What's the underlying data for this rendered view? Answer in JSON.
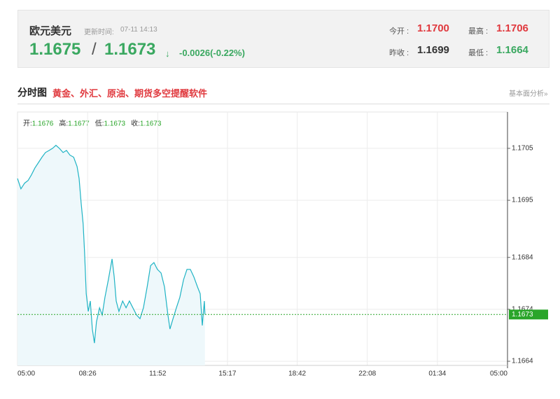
{
  "header": {
    "title": "欧元美元",
    "update_label": "更新时间:",
    "update_time": "07-11 14:13",
    "bid": "1.1675",
    "separator": "/",
    "ask": "1.1673",
    "arrow": "↓",
    "change": "-0.0026(-0.22%)",
    "stats": [
      {
        "label": "今开 :",
        "value": "1.1700"
      },
      {
        "label": "最高 :",
        "value": "1.1706"
      },
      {
        "label": "昨收 :",
        "value": "1.1699"
      },
      {
        "label": "最低 :",
        "value": "1.1664"
      }
    ]
  },
  "section": {
    "title": "分时图",
    "promo": "黄金、外汇、原油、期货多空提醒软件",
    "link": "基本面分析»"
  },
  "chart_data": {
    "type": "line",
    "ohlc": [
      {
        "label": "开:",
        "value": "1.1676"
      },
      {
        "label": "高:",
        "value": "1.1677"
      },
      {
        "label": "低:",
        "value": "1.1673"
      },
      {
        "label": "收:",
        "value": "1.1673"
      }
    ],
    "x": [
      0,
      10,
      21,
      31,
      41,
      51,
      62,
      72,
      82,
      93,
      103,
      113,
      123,
      134,
      144,
      154,
      165,
      175,
      181,
      187,
      193,
      197,
      202,
      208,
      214,
      220,
      226,
      232,
      241,
      249,
      257,
      267,
      278,
      284,
      290,
      298,
      309,
      319,
      329,
      339,
      350,
      360,
      370,
      381,
      391,
      401,
      411,
      422,
      432,
      442,
      448,
      457,
      467,
      477,
      488,
      498,
      508,
      518,
      529,
      537,
      543,
      549,
      551
    ],
    "series": [
      {
        "color": "#1fb3c4",
        "values": [
          1.16992,
          1.16972,
          1.16983,
          1.16988,
          1.16999,
          1.17012,
          1.17023,
          1.17033,
          1.17042,
          1.17046,
          1.1705,
          1.17056,
          1.1705,
          1.17042,
          1.17046,
          1.17037,
          1.17033,
          1.17015,
          1.16992,
          1.16945,
          1.16904,
          1.1685,
          1.1677,
          1.16736,
          1.16756,
          1.16702,
          1.16675,
          1.16716,
          1.16743,
          1.16729,
          1.16763,
          1.16797,
          1.16837,
          1.16803,
          1.16756,
          1.16736,
          1.16756,
          1.16743,
          1.16756,
          1.16743,
          1.16729,
          1.16722,
          1.16743,
          1.16783,
          1.16824,
          1.1683,
          1.16817,
          1.1681,
          1.16783,
          1.16729,
          1.16702,
          1.16722,
          1.16743,
          1.16763,
          1.16797,
          1.16817,
          1.16817,
          1.16803,
          1.16783,
          1.1677,
          1.16709,
          1.16756,
          1.1673
        ]
      }
    ],
    "fill": "#eef8fb",
    "xlim": [
      0,
      1440
    ],
    "xticks": [
      {
        "value": 0,
        "label": "05:00"
      },
      {
        "value": 206,
        "label": "08:26"
      },
      {
        "value": 412,
        "label": "11:52"
      },
      {
        "value": 617,
        "label": "15:17"
      },
      {
        "value": 822,
        "label": "18:42"
      },
      {
        "value": 1028,
        "label": "22:08"
      },
      {
        "value": 1234,
        "label": "01:34"
      },
      {
        "value": 1440,
        "label": "05:00"
      }
    ],
    "ylim": [
      1.16632,
      1.1712
    ],
    "yticks": [
      1.1705,
      1.1695,
      1.1684,
      1.1674,
      1.1664
    ],
    "last": {
      "value": 1.1673,
      "label": "1.1673",
      "color": "#2aa52a"
    },
    "grid": true
  }
}
